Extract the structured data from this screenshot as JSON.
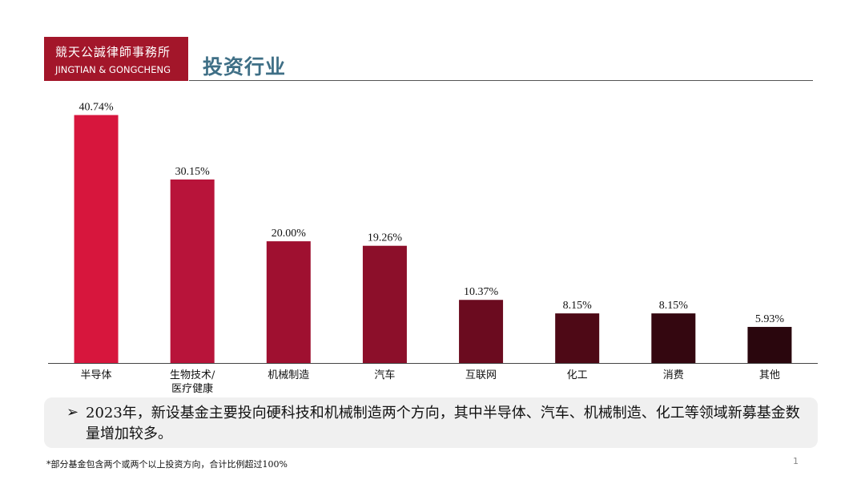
{
  "logo": {
    "name_cn": "競天公誠律師事務所",
    "name_en": "JINGTIAN & GONGCHENG"
  },
  "page_title": "投资行业",
  "chart_data": {
    "type": "bar",
    "categories": [
      "半导体",
      "生物技术/\n医疗健康",
      "机械制造",
      "汽车",
      "互联网",
      "化工",
      "消费",
      "其他"
    ],
    "values": [
      40.74,
      30.15,
      20.0,
      19.26,
      10.37,
      8.15,
      8.15,
      5.93
    ],
    "value_labels": [
      "40.74%",
      "30.15%",
      "20.00%",
      "19.26%",
      "10.37%",
      "8.15%",
      "8.15%",
      "5.93%"
    ],
    "bar_colors": [
      "#d7163d",
      "#b8143a",
      "#9f1030",
      "#8c0f2a",
      "#6b0b1f",
      "#4e0916",
      "#340710",
      "#2a060d"
    ],
    "unit": "%",
    "ylim": [
      0,
      42
    ],
    "grid": false,
    "legend": "none"
  },
  "note": {
    "bullet_icon": "arrow-right-icon",
    "text": "2023年，新设基金主要投向硬科技和机械制造两个方向，其中半导体、汽车、机械制造、化工等领域新募基金数量增加较多。"
  },
  "footnote": "*部分基金包含两个或两个以上投资方向，合计比例超过100%",
  "page_number": "1"
}
